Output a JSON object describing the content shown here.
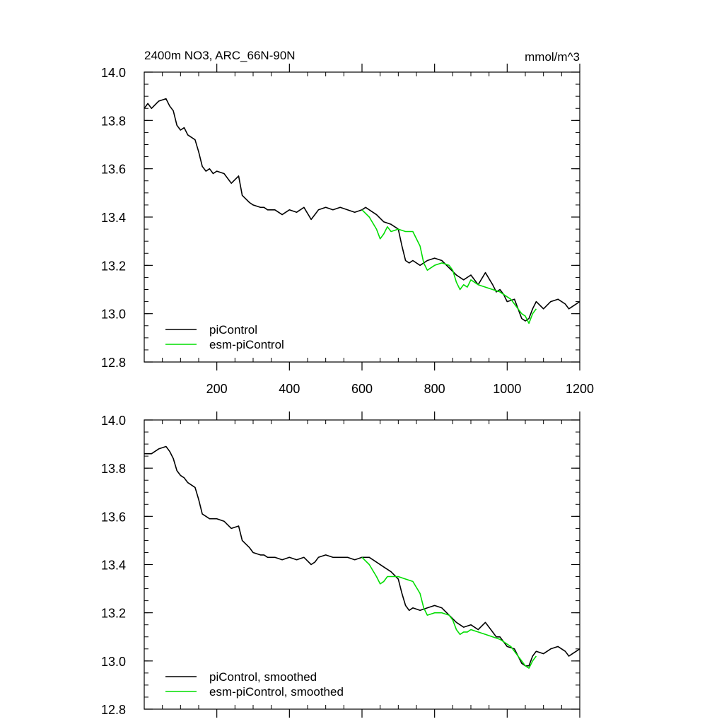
{
  "figure": {
    "title": "2400m NO3, ARC_66N-90N",
    "units": "mmol/m^3"
  },
  "colors": {
    "picontrol": "#000000",
    "esm_picontrol": "#00dd00",
    "axis": "#000000"
  },
  "chart_data": [
    {
      "type": "line",
      "title": "2400m NO3, ARC_66N-90N",
      "units_label": "mmol/m^3",
      "xlabel": "",
      "ylabel": "",
      "xlim": [
        0,
        1200
      ],
      "ylim": [
        12.8,
        14.0
      ],
      "xticks": [
        200,
        400,
        600,
        800,
        1000,
        1200
      ],
      "xtick_labels": [
        "200",
        "400",
        "600",
        "800",
        "1000",
        "1200"
      ],
      "yticks": [
        12.8,
        13.0,
        13.2,
        13.4,
        13.6,
        13.8,
        14.0
      ],
      "ytick_labels": [
        "12.8",
        "13.0",
        "13.2",
        "13.4",
        "13.6",
        "13.8",
        "14.0"
      ],
      "legend_placement": "bottom-left",
      "series": [
        {
          "name": "piControl",
          "color": "#000000",
          "x": [
            0,
            10,
            20,
            40,
            60,
            70,
            80,
            90,
            100,
            110,
            120,
            140,
            150,
            160,
            170,
            180,
            190,
            200,
            220,
            240,
            260,
            270,
            290,
            300,
            320,
            330,
            340,
            360,
            380,
            400,
            420,
            440,
            460,
            470,
            480,
            500,
            520,
            540,
            560,
            580,
            600,
            610,
            620,
            640,
            660,
            680,
            700,
            710,
            720,
            730,
            740,
            760,
            780,
            800,
            820,
            840,
            860,
            880,
            900,
            920,
            940,
            960,
            970,
            980,
            990,
            1000,
            1020,
            1040,
            1050,
            1060,
            1070,
            1080,
            1100,
            1120,
            1140,
            1160,
            1170,
            1180,
            1200
          ],
          "y": [
            13.85,
            13.87,
            13.85,
            13.88,
            13.89,
            13.86,
            13.84,
            13.78,
            13.76,
            13.77,
            13.74,
            13.72,
            13.67,
            13.61,
            13.59,
            13.6,
            13.58,
            13.59,
            13.58,
            13.54,
            13.57,
            13.49,
            13.46,
            13.45,
            13.44,
            13.44,
            13.43,
            13.43,
            13.41,
            13.43,
            13.42,
            13.44,
            13.39,
            13.41,
            13.43,
            13.44,
            13.43,
            13.44,
            13.43,
            13.42,
            13.43,
            13.44,
            13.43,
            13.41,
            13.38,
            13.37,
            13.35,
            13.28,
            13.22,
            13.21,
            13.22,
            13.2,
            13.22,
            13.23,
            13.22,
            13.19,
            13.16,
            13.14,
            13.16,
            13.12,
            13.17,
            13.12,
            13.09,
            13.1,
            13.08,
            13.05,
            13.06,
            12.98,
            12.97,
            12.98,
            13.02,
            13.05,
            13.02,
            13.05,
            13.06,
            13.04,
            13.02,
            13.03,
            13.05
          ]
        },
        {
          "name": "esm-piControl",
          "color": "#00dd00",
          "x": [
            600,
            620,
            640,
            650,
            660,
            670,
            680,
            700,
            720,
            740,
            760,
            770,
            780,
            800,
            820,
            840,
            850,
            860,
            870,
            880,
            890,
            900,
            920,
            940,
            960,
            980,
            1000,
            1010,
            1020,
            1030,
            1040,
            1050,
            1060,
            1070,
            1080
          ],
          "y": [
            13.43,
            13.4,
            13.35,
            13.31,
            13.33,
            13.36,
            13.34,
            13.35,
            13.34,
            13.34,
            13.28,
            13.21,
            13.18,
            13.2,
            13.21,
            13.2,
            13.18,
            13.13,
            13.1,
            13.12,
            13.11,
            13.14,
            13.12,
            13.11,
            13.1,
            13.09,
            13.07,
            13.06,
            13.04,
            13.02,
            13.0,
            12.99,
            12.96,
            13.0,
            13.02
          ]
        }
      ],
      "legend": [
        "piControl",
        "esm-piControl"
      ]
    },
    {
      "type": "line",
      "title": "",
      "xlabel": "",
      "ylabel": "",
      "xlim": [
        0,
        1200
      ],
      "ylim": [
        12.8,
        14.0
      ],
      "xticks": [
        200,
        400,
        600,
        800,
        1000,
        1200
      ],
      "yticks": [
        12.8,
        13.0,
        13.2,
        13.4,
        13.6,
        13.8,
        14.0
      ],
      "ytick_labels": [
        "12.8",
        "13.0",
        "13.2",
        "13.4",
        "13.6",
        "13.8",
        "14.0"
      ],
      "legend_placement": "bottom-left",
      "series": [
        {
          "name": "piControl, smoothed",
          "color": "#000000",
          "x": [
            0,
            10,
            20,
            40,
            60,
            70,
            80,
            90,
            100,
            110,
            120,
            140,
            150,
            160,
            170,
            180,
            190,
            200,
            220,
            240,
            260,
            270,
            290,
            300,
            320,
            330,
            340,
            360,
            380,
            400,
            420,
            440,
            460,
            470,
            480,
            500,
            520,
            540,
            560,
            580,
            600,
            610,
            620,
            640,
            660,
            680,
            700,
            710,
            720,
            730,
            740,
            760,
            780,
            800,
            820,
            840,
            860,
            880,
            900,
            920,
            940,
            960,
            970,
            980,
            990,
            1000,
            1020,
            1040,
            1050,
            1060,
            1070,
            1080,
            1100,
            1120,
            1140,
            1160,
            1170,
            1180,
            1200
          ],
          "y": [
            13.86,
            13.86,
            13.86,
            13.88,
            13.89,
            13.87,
            13.84,
            13.79,
            13.77,
            13.76,
            13.74,
            13.72,
            13.67,
            13.61,
            13.6,
            13.59,
            13.59,
            13.59,
            13.58,
            13.55,
            13.56,
            13.5,
            13.47,
            13.45,
            13.44,
            13.44,
            13.43,
            13.43,
            13.42,
            13.43,
            13.42,
            13.43,
            13.4,
            13.41,
            13.43,
            13.44,
            13.43,
            13.43,
            13.43,
            13.42,
            13.43,
            13.43,
            13.43,
            13.41,
            13.39,
            13.37,
            13.34,
            13.28,
            13.23,
            13.21,
            13.22,
            13.21,
            13.22,
            13.23,
            13.22,
            13.19,
            13.16,
            13.14,
            13.15,
            13.13,
            13.16,
            13.12,
            13.1,
            13.1,
            13.08,
            13.06,
            13.05,
            12.99,
            12.98,
            12.98,
            13.02,
            13.04,
            13.03,
            13.05,
            13.06,
            13.04,
            13.02,
            13.03,
            13.05
          ]
        },
        {
          "name": "esm-piControl, smoothed",
          "color": "#00dd00",
          "x": [
            600,
            620,
            640,
            650,
            660,
            670,
            680,
            700,
            720,
            740,
            760,
            770,
            780,
            800,
            820,
            840,
            850,
            860,
            870,
            880,
            890,
            900,
            920,
            940,
            960,
            980,
            1000,
            1010,
            1020,
            1030,
            1040,
            1050,
            1060,
            1070,
            1080
          ],
          "y": [
            13.43,
            13.4,
            13.35,
            13.32,
            13.33,
            13.35,
            13.35,
            13.35,
            13.34,
            13.33,
            13.28,
            13.22,
            13.19,
            13.2,
            13.2,
            13.19,
            13.17,
            13.13,
            13.11,
            13.12,
            13.12,
            13.13,
            13.12,
            13.11,
            13.1,
            13.09,
            13.07,
            13.06,
            13.04,
            13.02,
            13.0,
            12.98,
            12.97,
            13.0,
            13.02
          ]
        }
      ],
      "legend": [
        "piControl, smoothed",
        "esm-piControl, smoothed"
      ]
    }
  ]
}
